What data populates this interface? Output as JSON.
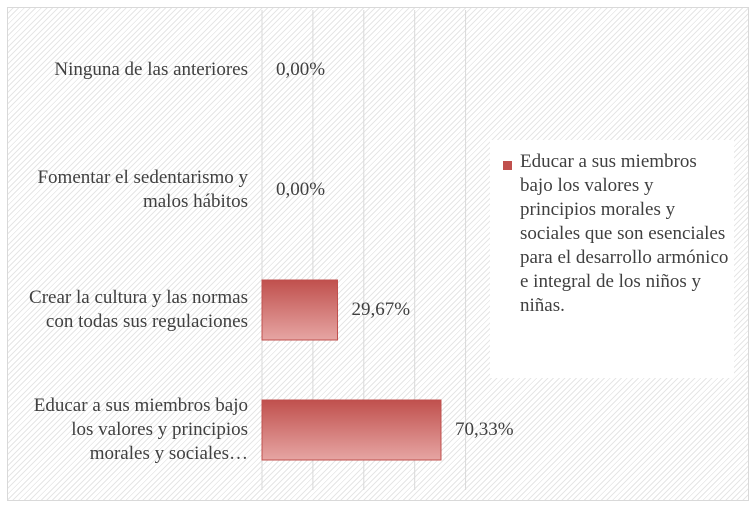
{
  "chart_data": {
    "type": "bar",
    "orientation": "horizontal",
    "categories": [
      "Ninguna de las anteriores",
      "Fomentar el sedentarismo y malos hábitos",
      "Crear la cultura y las normas con todas sus regulaciones",
      "Educar a sus miembros bajo los valores y principios morales y sociales…"
    ],
    "series": [
      {
        "name": "Educar a sus miembros bajo los valores y principios morales y sociales que son esenciales para el desarrollo armónico e integral de los niños y niñas.",
        "color": "#c0504d",
        "values": [
          0,
          0,
          29.67,
          70.33
        ],
        "value_labels": [
          "0,00%",
          "0,00%",
          "29,67%",
          "70,33%"
        ]
      }
    ],
    "xlim": [
      0,
      80
    ],
    "xticks": [
      0,
      20,
      40,
      60,
      80
    ],
    "grid": true,
    "legend": "right"
  }
}
